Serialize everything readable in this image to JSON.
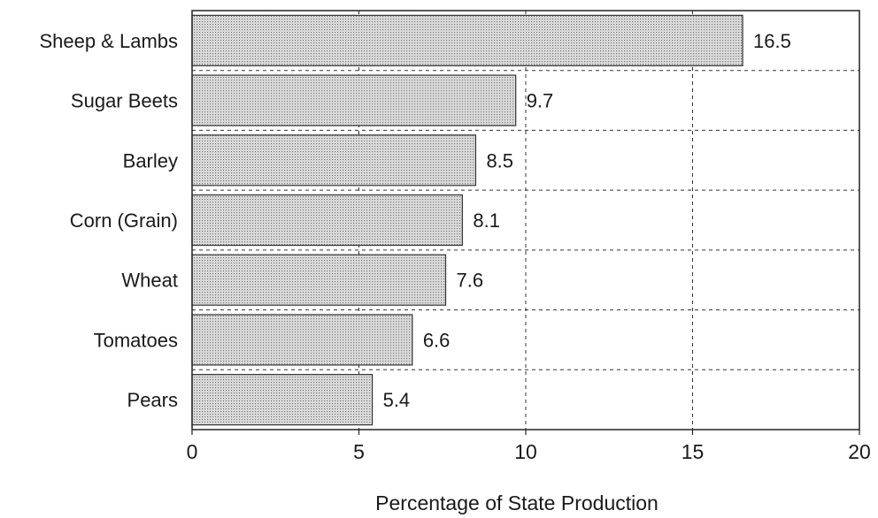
{
  "chart_data": {
    "type": "bar",
    "orientation": "horizontal",
    "title": "",
    "categories": [
      "Sheep & Lambs",
      "Sugar Beets",
      "Barley",
      "Corn (Grain)",
      "Wheat",
      "Tomatoes",
      "Pears"
    ],
    "values": [
      16.5,
      9.7,
      8.5,
      8.1,
      7.6,
      6.6,
      5.4
    ],
    "value_labels": [
      "16.5",
      "9.7",
      "8.5",
      "8.1",
      "7.6",
      "6.6",
      "5.4"
    ],
    "xlabel": "Percentage of State Production",
    "ylabel": "",
    "xlim": [
      0,
      20
    ],
    "xticks": [
      0,
      5,
      10,
      15,
      20
    ],
    "xtick_labels": [
      "0",
      "5",
      "10",
      "15",
      "20"
    ],
    "grid": true,
    "legend": "none",
    "colors": {
      "bar_fill": "#dcdcdc",
      "bar_dot": "#777777",
      "bar_edge": "#333333",
      "grid": "#333333"
    }
  }
}
